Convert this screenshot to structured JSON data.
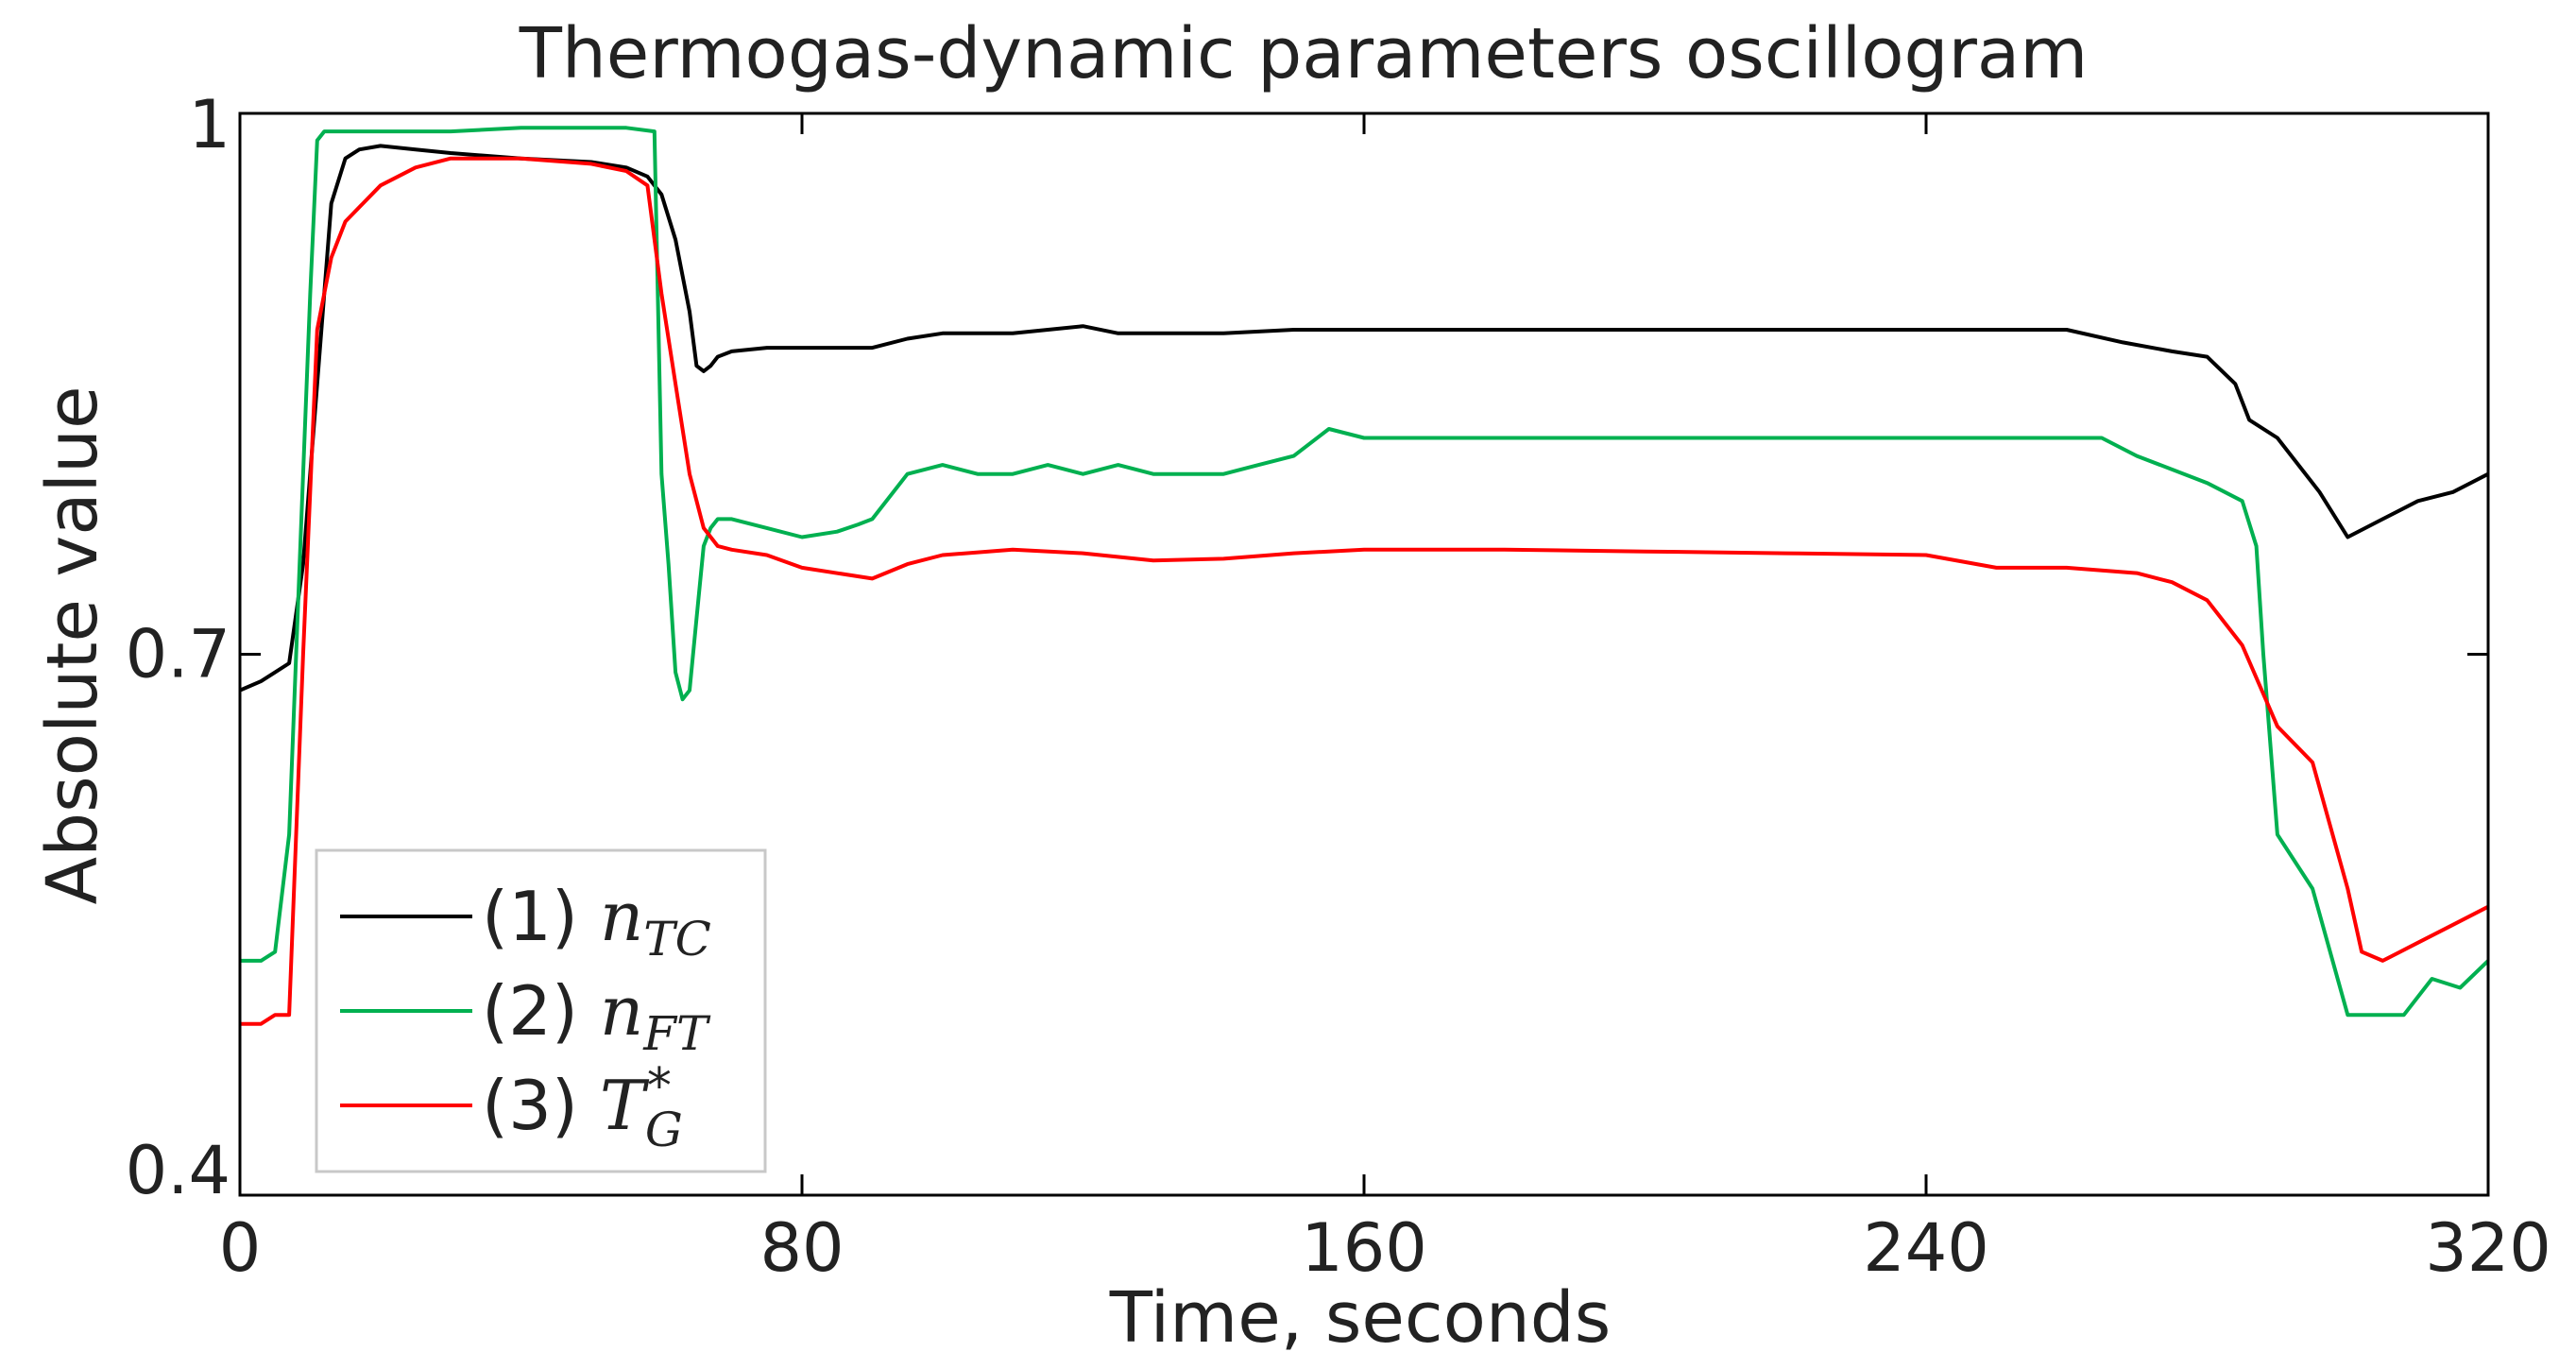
{
  "chart_data": {
    "type": "line",
    "title": "Thermogas-dynamic parameters oscillogram",
    "xlabel": "Time, seconds",
    "ylabel": "Absolute value",
    "xlim": [
      0,
      320
    ],
    "ylim": [
      0.4,
      1.0
    ],
    "xticks": [
      0,
      80,
      160,
      240,
      320
    ],
    "xtick_labels": [
      "0",
      "80",
      "160",
      "240",
      "320"
    ],
    "yticks": [
      0.4,
      0.7,
      1.0
    ],
    "ytick_labels": [
      "0.4",
      "0.7",
      "1"
    ],
    "grid": false,
    "legend_position": "bottom-left",
    "series": [
      {
        "name": "(1) nTC",
        "legend_prefix": "(1)",
        "legend_symbol": "n",
        "legend_sub": "TC",
        "legend_sup": "",
        "color": "#000000",
        "x": [
          0,
          3,
          5,
          7,
          9,
          11,
          13,
          15,
          17,
          20,
          25,
          30,
          40,
          50,
          55,
          58,
          60,
          62,
          64,
          65,
          66,
          67,
          68,
          70,
          75,
          80,
          90,
          95,
          100,
          110,
          115,
          120,
          125,
          140,
          150,
          160,
          200,
          240,
          260,
          268,
          275,
          280,
          284,
          286,
          290,
          296,
          300,
          305,
          310,
          315,
          320
        ],
        "y": [
          0.68,
          0.685,
          0.69,
          0.695,
          0.75,
          0.85,
          0.95,
          0.975,
          0.98,
          0.982,
          0.98,
          0.978,
          0.975,
          0.973,
          0.97,
          0.965,
          0.955,
          0.93,
          0.89,
          0.86,
          0.857,
          0.86,
          0.865,
          0.868,
          0.87,
          0.87,
          0.87,
          0.875,
          0.878,
          0.878,
          0.88,
          0.882,
          0.878,
          0.878,
          0.88,
          0.88,
          0.88,
          0.88,
          0.88,
          0.873,
          0.868,
          0.865,
          0.85,
          0.83,
          0.82,
          0.79,
          0.765,
          0.775,
          0.785,
          0.79,
          0.8
        ]
      },
      {
        "name": "(2) nFT",
        "legend_prefix": "(2)",
        "legend_symbol": "n",
        "legend_sub": "FT",
        "legend_sup": "",
        "color": "#00b050",
        "x": [
          0,
          3,
          5,
          7,
          8,
          9,
          10,
          11,
          12,
          14,
          20,
          30,
          40,
          50,
          55,
          59,
          60,
          61,
          62,
          63,
          64,
          65,
          66,
          67,
          68,
          70,
          75,
          80,
          85,
          88,
          90,
          95,
          100,
          105,
          110,
          115,
          120,
          125,
          130,
          135,
          140,
          145,
          150,
          155,
          160,
          200,
          240,
          265,
          270,
          280,
          285,
          287,
          288,
          290,
          295,
          300,
          305,
          308,
          312,
          316,
          320
        ],
        "y": [
          0.53,
          0.53,
          0.535,
          0.6,
          0.7,
          0.8,
          0.9,
          0.985,
          0.99,
          0.99,
          0.99,
          0.99,
          0.992,
          0.992,
          0.992,
          0.99,
          0.8,
          0.75,
          0.69,
          0.675,
          0.68,
          0.72,
          0.76,
          0.77,
          0.775,
          0.775,
          0.77,
          0.765,
          0.768,
          0.772,
          0.775,
          0.8,
          0.805,
          0.8,
          0.8,
          0.805,
          0.8,
          0.805,
          0.8,
          0.8,
          0.8,
          0.805,
          0.81,
          0.825,
          0.82,
          0.82,
          0.82,
          0.82,
          0.81,
          0.795,
          0.785,
          0.76,
          0.7,
          0.6,
          0.57,
          0.5,
          0.5,
          0.5,
          0.52,
          0.515,
          0.53
        ]
      },
      {
        "name": "(3) T*G",
        "legend_prefix": "(3)",
        "legend_symbol": "T",
        "legend_sub": "G",
        "legend_sup": "*",
        "color": "#ff0000",
        "x": [
          0,
          3,
          5,
          7,
          9,
          11,
          13,
          15,
          20,
          25,
          30,
          40,
          50,
          55,
          58,
          60,
          62,
          64,
          66,
          68,
          70,
          75,
          80,
          90,
          95,
          100,
          110,
          120,
          130,
          140,
          150,
          160,
          180,
          200,
          220,
          240,
          250,
          260,
          270,
          275,
          280,
          285,
          290,
          295,
          300,
          302,
          305,
          310,
          315,
          320
        ],
        "y": [
          0.495,
          0.495,
          0.5,
          0.5,
          0.7,
          0.88,
          0.92,
          0.94,
          0.96,
          0.97,
          0.975,
          0.975,
          0.972,
          0.968,
          0.96,
          0.9,
          0.85,
          0.8,
          0.77,
          0.76,
          0.758,
          0.755,
          0.748,
          0.742,
          0.75,
          0.755,
          0.758,
          0.756,
          0.752,
          0.753,
          0.756,
          0.758,
          0.758,
          0.757,
          0.756,
          0.755,
          0.748,
          0.748,
          0.745,
          0.74,
          0.73,
          0.705,
          0.66,
          0.64,
          0.57,
          0.535,
          0.53,
          0.54,
          0.55,
          0.56
        ]
      }
    ]
  }
}
